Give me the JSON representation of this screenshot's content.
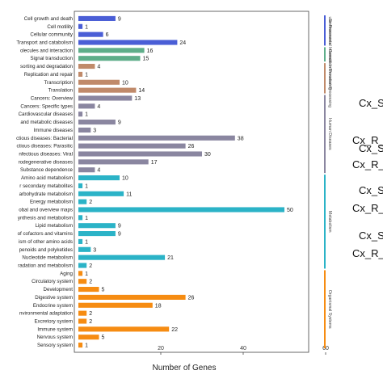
{
  "chart_data": {
    "type": "bar",
    "orientation": "horizontal",
    "xlabel": "Number of Genes",
    "xlim": [
      0,
      60
    ],
    "xticks": [
      20,
      40,
      60
    ],
    "categories": [
      "Cell growth and death",
      "Cell motility",
      "Cellular community",
      "Transport and catabolism",
      "olecules and interaction",
      "Signal transduction",
      "sorting and degradation",
      "Replication and repair",
      "Transcription",
      "Translation",
      "Cancers: Overview",
      "Cancers: Specific types",
      "Cardiovascular diseases",
      "and metabolic diseases",
      "Immune diseases",
      "ctious diseases: Bacterial",
      "ctious diseases: Parasitic",
      "nfectious diseases: Viral",
      "rodegenerative diseases",
      "Substance dependence",
      "Amino acid metabolism",
      "r secondary metabolites",
      "arbohydrate metabolism",
      "Energy metabolism",
      "obal and overview maps",
      "ynthesis and metabolism",
      "Lipid metabolism",
      "of cofactors and vitamins",
      "ism of other amino acids",
      "penoids and polyketides",
      "Nucleotide metabolism",
      "radation and metabolism",
      "Aging",
      "Circulatory system",
      "Development",
      "Digestive system",
      "Endocrine system",
      "nvironmental adaptation",
      "Excretory system",
      "Immune system",
      "Nervous system",
      "Sensory system"
    ],
    "values": [
      9,
      1,
      6,
      24,
      16,
      15,
      4,
      1,
      10,
      14,
      13,
      4,
      1,
      9,
      3,
      38,
      26,
      30,
      17,
      4,
      10,
      1,
      11,
      2,
      50,
      1,
      9,
      9,
      1,
      3,
      21,
      2,
      1,
      2,
      5,
      26,
      18,
      2,
      2,
      22,
      5,
      1
    ],
    "groups": [
      {
        "name": "ular Processes",
        "start": 0,
        "count": 4,
        "color": "#4a5ed6"
      },
      {
        "name": "Environmental Information Processing",
        "start": 4,
        "count": 2,
        "color": "#5fae8a"
      },
      {
        "name": "Genetic Information Processing",
        "start": 6,
        "count": 4,
        "color": "#c08a6a"
      },
      {
        "name": "Human Diseases",
        "start": 10,
        "count": 10,
        "color": "#8a86a0"
      },
      {
        "name": "Metabolism",
        "start": 20,
        "count": 12,
        "color": "#2bb3c7"
      },
      {
        "name": "Organismal Systems",
        "start": 32,
        "count": 10,
        "color": "#f68c12"
      }
    ]
  },
  "side_texts": [
    "Cx_S",
    "Cx_R_",
    "Cx_S_",
    "Cx_R_",
    "Cx_S_",
    "Cx_R_",
    "Cx_S_",
    "Cx_R_"
  ]
}
